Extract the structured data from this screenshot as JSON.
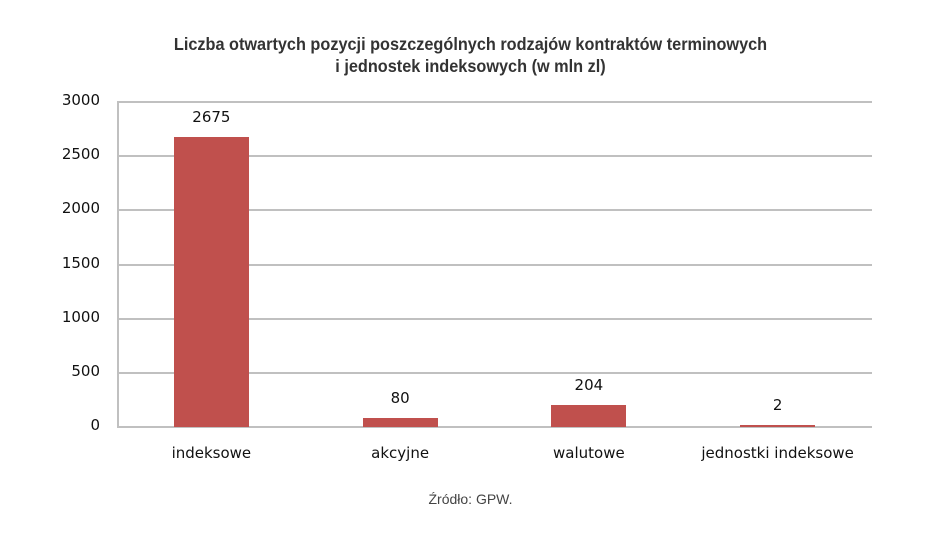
{
  "chart_data": {
    "type": "bar",
    "title": "Liczba otwartych pozycji poszczególnych rodzajów kontraktów terminowych i jednostek indeksowych (w mln zł)",
    "title_lines": [
      "Liczba otwartych pozycji poszczególnych rodzajów kontraktów terminowych",
      "i jednostek indeksowych (w mln zl)"
    ],
    "categories": [
      "indeksowe",
      "akcyjne",
      "walutowe",
      "jednostki indeksowe"
    ],
    "values": [
      2675,
      80,
      204,
      2
    ],
    "data_labels": [
      "2675",
      "80",
      "204",
      "2"
    ],
    "xlabel": "",
    "ylabel": "",
    "ylim": [
      0,
      3000
    ],
    "yticks": [
      "0",
      "500",
      "1000",
      "1500",
      "2000",
      "2500",
      "3000"
    ],
    "grid": true,
    "legend": null,
    "bar_color": "#c0504d",
    "source": "Źródło: GPW."
  }
}
